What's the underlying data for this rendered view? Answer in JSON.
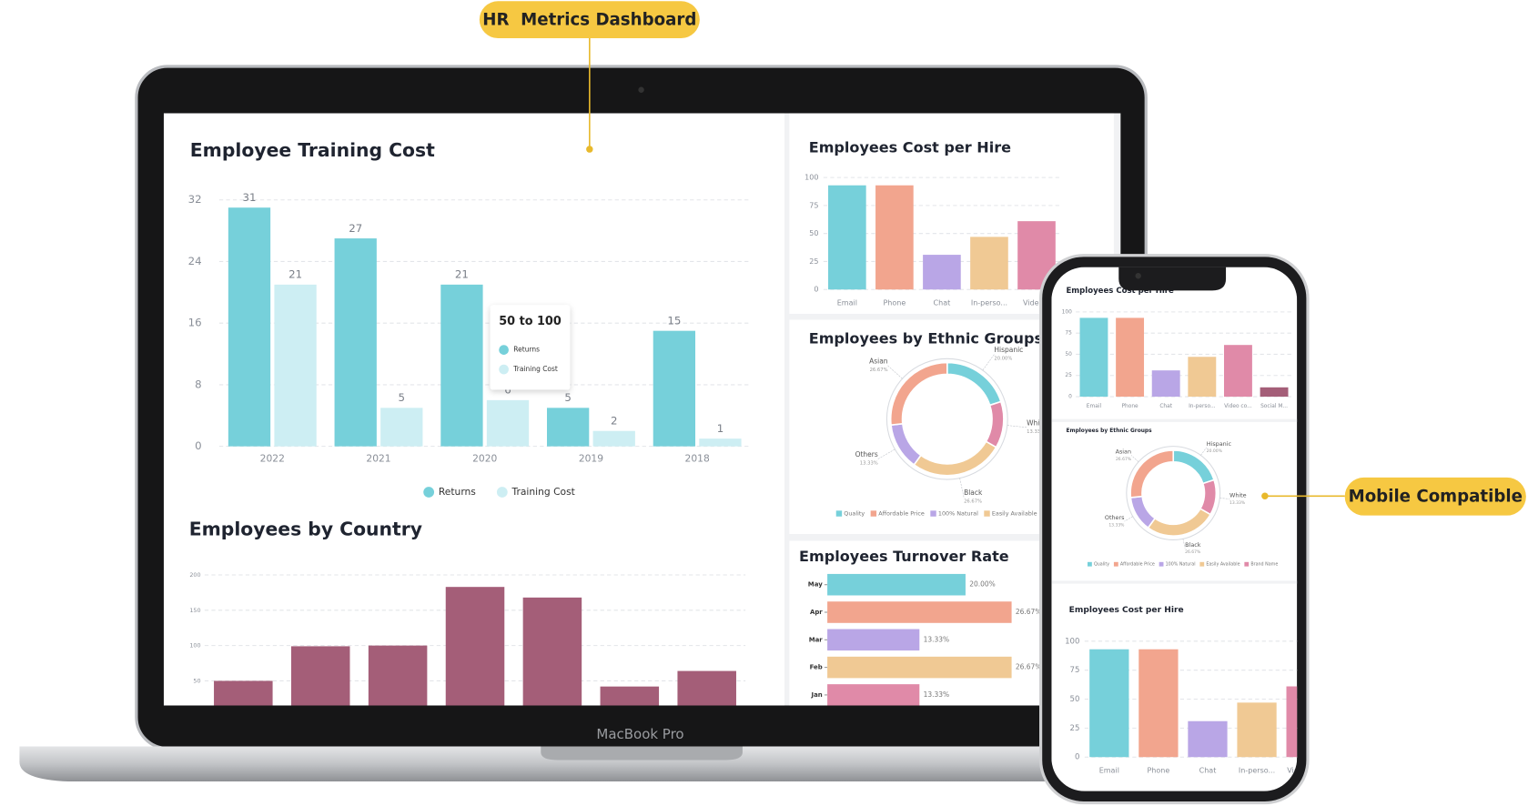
{
  "callouts": {
    "dashboard": "HR  Metrics Dashboard",
    "mobile": "Mobile Compatible"
  },
  "device_label": "MacBook Pro",
  "chart_data": [
    {
      "type": "bar",
      "title": "Employee Training Cost",
      "categories": [
        "2022",
        "2021",
        "2020",
        "2019",
        "2018"
      ],
      "series": [
        {
          "name": "Returns",
          "color": "#76d0da",
          "values": [
            31,
            27,
            21,
            5,
            15
          ]
        },
        {
          "name": "Training Cost",
          "color": "#cdeef3",
          "values": [
            21,
            5,
            6,
            2,
            1
          ]
        }
      ],
      "ylim": [
        0,
        32
      ],
      "yticks": [
        0,
        8,
        16,
        24,
        32
      ],
      "grid": true,
      "legend": "bottom",
      "tooltip": {
        "title": "50 to 100"
      }
    },
    {
      "type": "bar",
      "title": "Employees by Country",
      "categories": [
        null,
        null,
        null,
        null,
        null,
        null,
        null
      ],
      "values": [
        50,
        99,
        100,
        183,
        168,
        42,
        64
      ],
      "color": "#a45e78",
      "ylim": [
        0,
        200
      ],
      "yticks": [
        50,
        100,
        150,
        200
      ],
      "grid": true
    },
    {
      "type": "bar",
      "title": "Employees Cost per Hire",
      "categories": [
        "Email",
        "Phone",
        "Chat",
        "In-perso...",
        "Video..."
      ],
      "values": [
        93,
        93,
        31,
        47,
        61
      ],
      "colors": [
        "#76d0da",
        "#f2a58e",
        "#b9a6e6",
        "#f0c994",
        "#e08aa8"
      ],
      "ylim": [
        0,
        100
      ],
      "yticks": [
        0,
        25,
        50,
        75,
        100
      ],
      "grid": true
    },
    {
      "type": "pie",
      "title": "Employees by Ethnic Groups",
      "donut": true,
      "labels": [
        "Hispanic",
        "White",
        "Black",
        "Others",
        "Asian"
      ],
      "values": [
        20,
        13.33,
        26.67,
        13.33,
        26.67
      ],
      "value_labels": [
        "20.00%",
        "13.33%",
        "26.67%",
        "13.33%",
        "26.67%"
      ],
      "colors": [
        "#76d0da",
        "#e08aa8",
        "#f0c994",
        "#b9a6e6",
        "#f2a58e"
      ],
      "legend": {
        "names": [
          "Quality",
          "Affordable Price",
          "100% Natural",
          "Easily Available",
          "Brand Name"
        ],
        "colors": [
          "#76d0da",
          "#f2a58e",
          "#b9a6e6",
          "#f0c994",
          "#e08aa8"
        ]
      }
    },
    {
      "type": "barh",
      "title": "Employees Turnover Rate",
      "categories": [
        "May",
        "Apr",
        "Mar",
        "Feb",
        "Jan"
      ],
      "values": [
        20,
        26.67,
        13.33,
        26.67,
        13.33
      ],
      "value_labels": [
        "20.00%",
        "26.67%",
        "13.33%",
        "26.67%",
        "13.33%"
      ],
      "colors": [
        "#76d0da",
        "#f2a58e",
        "#b9a6e6",
        "#f0c994",
        "#e08aa8"
      ]
    },
    {
      "type": "bar",
      "title": "Employees Cost per Hire",
      "categories": [
        "Email",
        "Phone",
        "Chat",
        "In-perso...",
        "Video co...",
        "Social M..."
      ],
      "values": [
        93,
        93,
        31,
        47,
        61,
        11
      ],
      "colors": [
        "#76d0da",
        "#f2a58e",
        "#b9a6e6",
        "#f0c994",
        "#e08aa8",
        "#a45e78"
      ],
      "ylim": [
        0,
        100
      ],
      "yticks": [
        0,
        25,
        50,
        75,
        100
      ],
      "grid": true
    }
  ]
}
